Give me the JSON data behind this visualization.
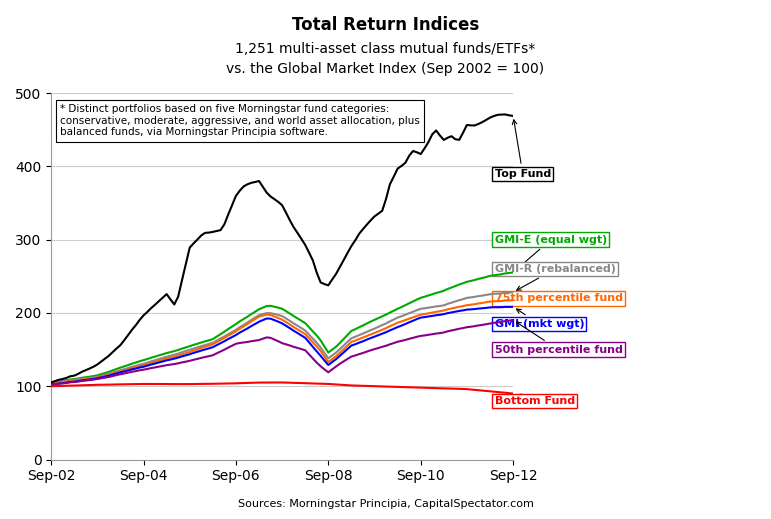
{
  "title": "Total Return Indices",
  "subtitle1": "1,251 multi-asset class mutual funds/ETFs*",
  "subtitle2": "vs. the Global Market Index (Sep 2002 = 100)",
  "source": "Sources: Morningstar Principia, CapitalSpectator.com",
  "annotation_text": "* Distinct portfolios based on five Morningstar fund categories:\nconservative, moderate, aggressive, and world asset allocation, plus\nbalanced funds, via Morningstar Principia software.",
  "ylim": [
    0,
    500
  ],
  "yticks": [
    0,
    100,
    200,
    300,
    400,
    500
  ],
  "x_labels": [
    "Sep-02",
    "Sep-04",
    "Sep-06",
    "Sep-08",
    "Sep-10",
    "Sep-12"
  ],
  "series": {
    "top_fund": {
      "color": "#000000",
      "label": "Top Fund",
      "linewidth": 1.5
    },
    "gmi_e": {
      "color": "#00aa00",
      "label": "GMI-E (equal wgt)",
      "linewidth": 1.5
    },
    "gmi_r": {
      "color": "#888888",
      "label": "GMI-R (rebalanced)",
      "linewidth": 1.5
    },
    "p75": {
      "color": "#ff6600",
      "label": "75th percentile fund",
      "linewidth": 1.5
    },
    "gmi": {
      "color": "#0000ff",
      "label": "GMI (mkt wgt)",
      "linewidth": 1.5
    },
    "p50": {
      "color": "#880088",
      "label": "50th percentile fund",
      "linewidth": 1.5
    },
    "bottom_fund": {
      "color": "#ff0000",
      "label": "Bottom Fund",
      "linewidth": 1.5
    }
  }
}
